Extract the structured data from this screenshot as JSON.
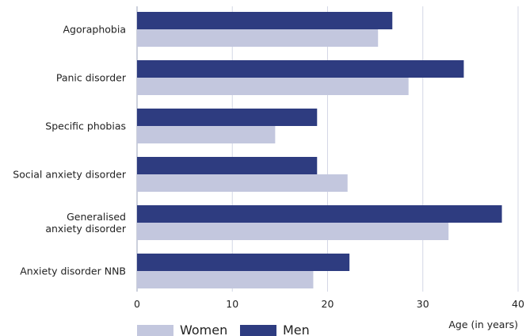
{
  "chart_data": {
    "type": "bar",
    "orientation": "horizontal",
    "categories": [
      [
        "Agoraphobia"
      ],
      [
        "Panic disorder"
      ],
      [
        "Specific phobias"
      ],
      [
        "Social anxiety disorder"
      ],
      [
        "Generalised",
        "anxiety disorder"
      ],
      [
        "Anxiety disorder NNB"
      ]
    ],
    "series": [
      {
        "name": "Men",
        "color": "#2e3c80",
        "values": [
          26.8,
          34.3,
          18.9,
          18.9,
          38.3,
          22.3
        ]
      },
      {
        "name": "Women",
        "color": "#c3c7de",
        "values": [
          25.3,
          28.5,
          14.5,
          22.1,
          32.7,
          18.5
        ]
      }
    ],
    "xlim": [
      0,
      40
    ],
    "xticks": [
      0,
      10,
      20,
      30,
      40
    ],
    "xlabel": "Age (in years)",
    "grid": true,
    "legend": {
      "position": "bottom-left",
      "order": [
        "Women",
        "Men"
      ]
    }
  }
}
